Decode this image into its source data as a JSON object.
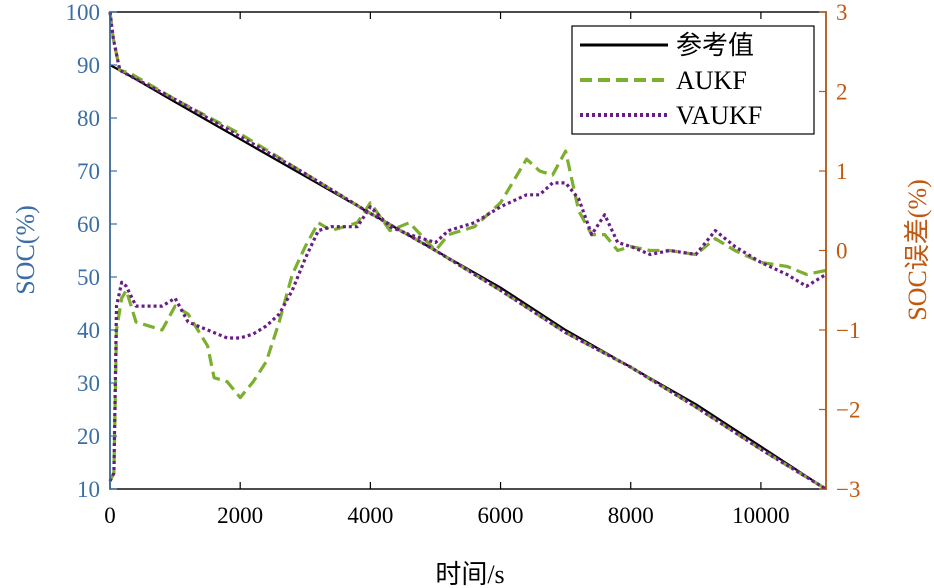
{
  "chart_data": {
    "type": "line",
    "xlabel": "时间/s",
    "ylabel_left": "SOC(%)",
    "ylabel_right": "SOC误差(%)",
    "xlim": [
      0,
      11000
    ],
    "ylim_left": [
      10,
      100
    ],
    "ylim_right": [
      -3,
      3
    ],
    "x_ticks": [
      0,
      2000,
      4000,
      6000,
      8000,
      10000
    ],
    "x_tick_labels": [
      "0",
      "2000",
      "4000",
      "6000",
      "8000",
      "10000"
    ],
    "y_left_ticks": [
      10,
      20,
      30,
      40,
      50,
      60,
      70,
      80,
      90,
      100
    ],
    "y_left_tick_labels": [
      "10",
      "20",
      "30",
      "40",
      "50",
      "60",
      "70",
      "80",
      "90",
      "100"
    ],
    "y_right_ticks": [
      -3,
      -2,
      -1,
      0,
      1,
      2,
      3
    ],
    "y_right_tick_labels": [
      "−3",
      "−2",
      "−1",
      "0",
      "1",
      "2",
      "3"
    ],
    "grid": false,
    "legend_position": "top-right",
    "colors": {
      "left_axis": "#3a6ea5",
      "right_axis": "#c0580f",
      "reference": "#000000",
      "aukf": "#7cae2f",
      "vaukf": "#6a1b86"
    },
    "legend": [
      {
        "label": "参考值",
        "style": "solid",
        "color": "#000000"
      },
      {
        "label": "AUKF",
        "style": "dashed",
        "color": "#7cae2f"
      },
      {
        "label": "VAUKF",
        "style": "dotted",
        "color": "#6a1b86"
      }
    ],
    "soc_series": [
      {
        "name": "参考值",
        "axis": "left",
        "x": [
          0,
          300,
          1000,
          2000,
          3000,
          4000,
          5000,
          6000,
          7000,
          8000,
          9000,
          10000,
          11000
        ],
        "values": [
          90,
          88,
          83,
          76,
          69,
          62,
          55,
          48,
          40,
          33,
          26,
          18,
          10
        ]
      },
      {
        "name": "AUKF",
        "axis": "left",
        "x": [
          0,
          50,
          150,
          300,
          1000,
          2000,
          3000,
          4000,
          5000,
          6000,
          7000,
          8000,
          9000,
          10000,
          11000
        ],
        "values": [
          100,
          95,
          89,
          88.5,
          83.5,
          77,
          69.5,
          62,
          55,
          47.5,
          39.5,
          33,
          25.5,
          17.5,
          10
        ]
      },
      {
        "name": "VAUKF",
        "axis": "left",
        "x": [
          0,
          50,
          150,
          300,
          1000,
          2000,
          3000,
          4000,
          5000,
          6000,
          7000,
          8000,
          9000,
          10000,
          11000
        ],
        "values": [
          100,
          95,
          89,
          88,
          83.5,
          76.5,
          69.5,
          62,
          55,
          47.5,
          39.5,
          33,
          25.5,
          17.5,
          10
        ]
      }
    ],
    "error_series": [
      {
        "name": "AUKF",
        "axis": "right",
        "x": [
          0,
          60,
          100,
          180,
          250,
          400,
          800,
          1000,
          1200,
          1500,
          1600,
          1800,
          2000,
          2200,
          2400,
          2600,
          2800,
          3000,
          3200,
          3400,
          3800,
          4000,
          4300,
          4600,
          5000,
          5200,
          5600,
          6000,
          6400,
          6600,
          6800,
          7000,
          7200,
          7400,
          7600,
          7800,
          8000,
          8300,
          8600,
          9000,
          9300,
          9600,
          10000,
          10400,
          10700,
          11000
        ],
        "values": [
          -2.9,
          -2.8,
          -1.0,
          -0.6,
          -0.5,
          -0.9,
          -1.0,
          -0.7,
          -0.8,
          -1.2,
          -1.6,
          -1.65,
          -1.85,
          -1.65,
          -1.4,
          -0.9,
          -0.3,
          0.05,
          0.35,
          0.25,
          0.35,
          0.6,
          0.25,
          0.35,
          0.0,
          0.2,
          0.3,
          0.6,
          1.15,
          1.0,
          0.95,
          1.25,
          0.5,
          0.2,
          0.2,
          0.0,
          0.05,
          0.0,
          0.0,
          -0.05,
          0.15,
          0.0,
          -0.15,
          -0.2,
          -0.3,
          -0.25
        ]
      },
      {
        "name": "VAUKF",
        "axis": "right",
        "x": [
          0,
          60,
          100,
          180,
          250,
          400,
          800,
          1000,
          1200,
          1500,
          1800,
          2000,
          2200,
          2400,
          2600,
          2800,
          3000,
          3200,
          3400,
          3800,
          4000,
          4300,
          4600,
          5000,
          5200,
          5600,
          6000,
          6400,
          6600,
          6800,
          7000,
          7200,
          7400,
          7600,
          7800,
          8000,
          8300,
          8600,
          9000,
          9300,
          9600,
          10000,
          10400,
          10700,
          11000
        ],
        "values": [
          -2.9,
          -2.8,
          -0.7,
          -0.4,
          -0.45,
          -0.7,
          -0.7,
          -0.6,
          -0.9,
          -1.0,
          -1.1,
          -1.1,
          -1.05,
          -0.95,
          -0.8,
          -0.5,
          -0.1,
          0.25,
          0.3,
          0.3,
          0.55,
          0.3,
          0.2,
          0.1,
          0.25,
          0.35,
          0.55,
          0.7,
          0.7,
          0.85,
          0.85,
          0.65,
          0.2,
          0.45,
          0.1,
          0.05,
          -0.05,
          0.0,
          -0.05,
          0.25,
          0.05,
          -0.15,
          -0.3,
          -0.45,
          -0.3
        ]
      }
    ]
  }
}
